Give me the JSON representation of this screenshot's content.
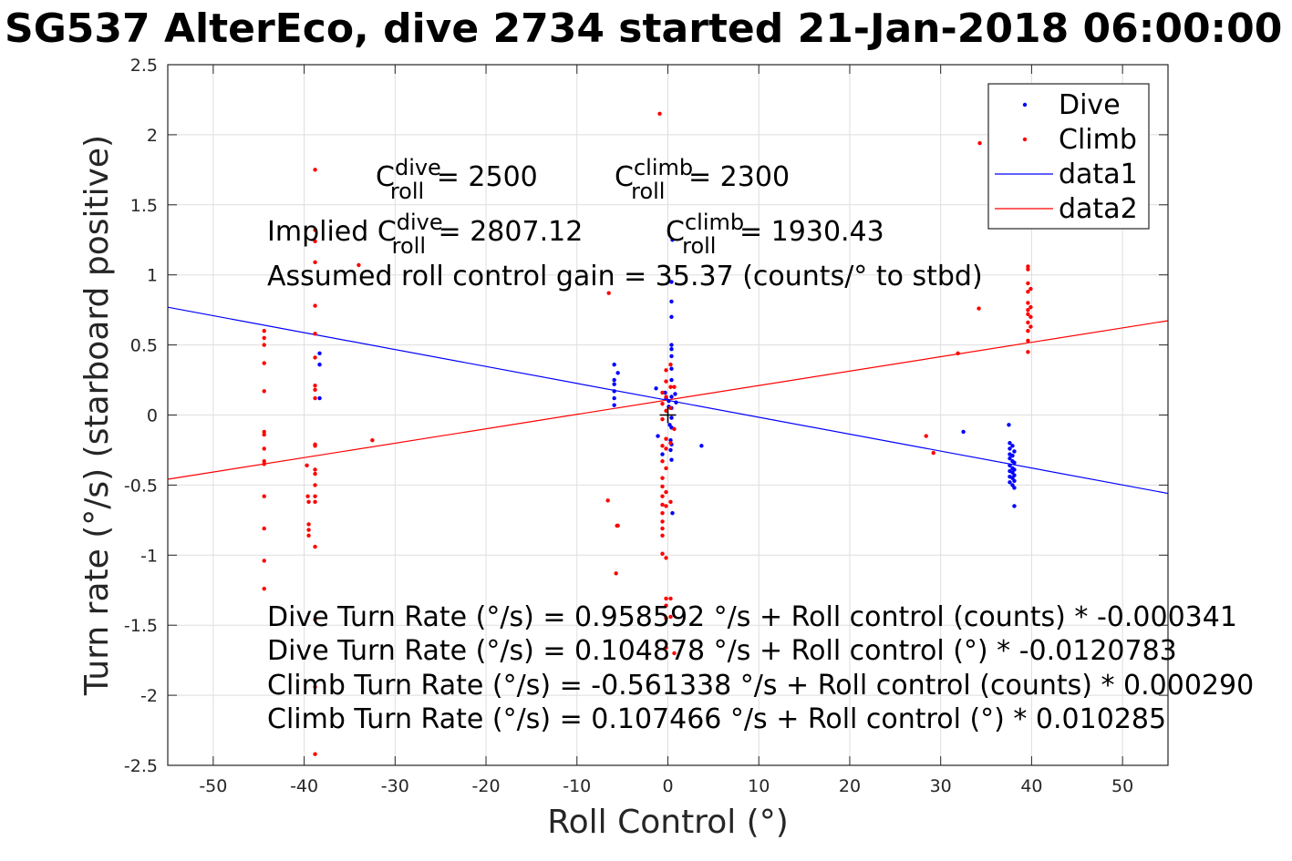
{
  "title": "SG537 AlterEco, dive 2734 started 21-Jan-2018 06:00:00",
  "annotations": {
    "c_dive_main": "C",
    "c_dive_sup": "dive",
    "c_dive_sub": "roll",
    "c_dive_value": " = 2500",
    "c_climb_main": "C",
    "c_climb_sup": "climb",
    "c_climb_sub": "roll",
    "c_climb_value": " = 2300",
    "implied_prefix": "Implied C",
    "implied_dive_sup": "dive",
    "implied_dive_sub": "roll",
    "implied_dive_value": " = 2807.12",
    "implied_climb_main": "C",
    "implied_climb_sup": "climb",
    "implied_climb_sub": "roll",
    "implied_climb_value": " = 1930.43",
    "gain": "Assumed roll control gain = 35.37 (counts/° to stbd)",
    "fit_lines": [
      "Dive Turn Rate (°/s) = 0.958592 °/s + Roll control (counts) * -0.000341",
      "Dive Turn Rate (°/s) = 0.104878 °/s + Roll control (°) * -0.0120783",
      "Climb Turn Rate (°/s) = -0.561338 °/s + Roll control (counts) * 0.000290",
      "Climb Turn Rate (°/s) = 0.107466 °/s + Roll control (°) * 0.010285"
    ]
  },
  "legend": {
    "placement": "top-right",
    "entries": [
      {
        "label": "Dive",
        "kind": "marker",
        "color": "#0000ff"
      },
      {
        "label": "Climb",
        "kind": "marker",
        "color": "#ff0000"
      },
      {
        "label": "data1",
        "kind": "line",
        "color": "#0000ff"
      },
      {
        "label": "data2",
        "kind": "line",
        "color": "#ff0000"
      }
    ]
  },
  "chart_data": {
    "type": "scatter",
    "title": "SG537 AlterEco, dive 2734 started 21-Jan-2018 06:00:00",
    "xlabel": "Roll Control (°)",
    "ylabel": "Turn rate (°/s) (starboard positive)",
    "xlim": [
      -55,
      55
    ],
    "ylim": [
      -2.5,
      2.5
    ],
    "xticks": [
      -50,
      -40,
      -30,
      -20,
      -10,
      0,
      10,
      20,
      30,
      40,
      50
    ],
    "yticks": [
      -2.5,
      -2,
      -1.5,
      -1,
      -0.5,
      0,
      0.5,
      1,
      1.5,
      2,
      2.5
    ],
    "grid": true,
    "series": [
      {
        "name": "Dive",
        "kind": "scatter",
        "color": "#0000ff",
        "points": [
          [
            -38.3,
            0.44
          ],
          [
            -38.3,
            0.36
          ],
          [
            -38.3,
            0.12
          ],
          [
            -5.9,
            0.36
          ],
          [
            -5.9,
            0.25
          ],
          [
            -5.9,
            0.22
          ],
          [
            -5.9,
            0.17
          ],
          [
            -5.9,
            0.12
          ],
          [
            -5.9,
            0.07
          ],
          [
            -5.5,
            0.3
          ],
          [
            -1.3,
            0.19
          ],
          [
            -1.1,
            -0.15
          ],
          [
            -0.6,
            -0.28
          ],
          [
            -0.3,
            0.16
          ],
          [
            -0.2,
            0.12
          ],
          [
            0.1,
            0.1
          ],
          [
            0.1,
            0.06
          ],
          [
            0.2,
            -0.07
          ],
          [
            0.3,
            -0.18
          ],
          [
            0.3,
            -0.25
          ],
          [
            0.4,
            0.95
          ],
          [
            0.4,
            0.81
          ],
          [
            0.4,
            0.7
          ],
          [
            0.4,
            0.5
          ],
          [
            0.4,
            0.47
          ],
          [
            0.4,
            0.42
          ],
          [
            0.4,
            0.33
          ],
          [
            0.4,
            0.25
          ],
          [
            0.4,
            0.13
          ],
          [
            0.4,
            0.05
          ],
          [
            0.4,
            -0.02
          ],
          [
            0.4,
            -0.09
          ],
          [
            0.4,
            -0.21
          ],
          [
            0.4,
            -0.32
          ],
          [
            0.5,
            1.25
          ],
          [
            0.5,
            -0.7
          ],
          [
            0.8,
            0.15
          ],
          [
            0.9,
            0.09
          ],
          [
            3.7,
            -0.22
          ],
          [
            32.5,
            -0.12
          ],
          [
            37.5,
            -0.07
          ],
          [
            37.6,
            -0.2
          ],
          [
            37.6,
            -0.24
          ],
          [
            37.6,
            -0.28
          ],
          [
            37.6,
            -0.31
          ],
          [
            37.6,
            -0.36
          ],
          [
            37.6,
            -0.4
          ],
          [
            37.6,
            -0.44
          ],
          [
            37.6,
            -0.48
          ],
          [
            37.9,
            -0.22
          ],
          [
            37.9,
            -0.29
          ],
          [
            37.9,
            -0.33
          ],
          [
            37.9,
            -0.38
          ],
          [
            37.9,
            -0.41
          ],
          [
            37.9,
            -0.45
          ],
          [
            37.9,
            -0.5
          ],
          [
            38.1,
            -0.26
          ],
          [
            38.1,
            -0.34
          ],
          [
            38.1,
            -0.39
          ],
          [
            38.1,
            -0.43
          ],
          [
            38.1,
            -0.47
          ],
          [
            38.1,
            -0.52
          ],
          [
            38.1,
            -0.65
          ]
        ]
      },
      {
        "name": "Climb",
        "kind": "scatter",
        "color": "#ff0000",
        "points": [
          [
            -44.4,
            0.6
          ],
          [
            -44.4,
            0.55
          ],
          [
            -44.4,
            0.5
          ],
          [
            -44.4,
            0.37
          ],
          [
            -44.4,
            0.17
          ],
          [
            -44.4,
            -0.12
          ],
          [
            -44.4,
            -0.14
          ],
          [
            -44.4,
            -0.24
          ],
          [
            -44.4,
            -0.33
          ],
          [
            -44.4,
            -0.35
          ],
          [
            -44.4,
            -0.58
          ],
          [
            -44.4,
            -0.81
          ],
          [
            -44.4,
            -1.04
          ],
          [
            -44.4,
            -1.24
          ],
          [
            -39.7,
            -0.36
          ],
          [
            -39.6,
            -0.58
          ],
          [
            -39.5,
            -0.62
          ],
          [
            -39.5,
            -0.78
          ],
          [
            -39.5,
            -0.82
          ],
          [
            -39.5,
            -0.86
          ],
          [
            -38.8,
            1.75
          ],
          [
            -38.8,
            1.32
          ],
          [
            -38.8,
            1.24
          ],
          [
            -38.8,
            1.09
          ],
          [
            -38.8,
            0.78
          ],
          [
            -38.8,
            0.58
          ],
          [
            -38.8,
            0.41
          ],
          [
            -38.8,
            0.21
          ],
          [
            -38.8,
            0.18
          ],
          [
            -38.8,
            0.12
          ],
          [
            -38.8,
            -0.21
          ],
          [
            -38.8,
            -0.22
          ],
          [
            -38.8,
            -0.39
          ],
          [
            -38.8,
            -0.42
          ],
          [
            -38.8,
            -0.5
          ],
          [
            -38.8,
            -0.58
          ],
          [
            -38.8,
            -0.62
          ],
          [
            -38.8,
            -0.94
          ],
          [
            -38.8,
            -1.46
          ],
          [
            -38.8,
            -1.94
          ],
          [
            -38.8,
            -2.42
          ],
          [
            -34.0,
            1.07
          ],
          [
            -32.5,
            -0.18
          ],
          [
            -6.6,
            -0.61
          ],
          [
            -6.5,
            0.87
          ],
          [
            -5.6,
            -0.79
          ],
          [
            -5.5,
            -0.79
          ],
          [
            -5.7,
            -1.13
          ],
          [
            -0.9,
            2.15
          ],
          [
            -0.6,
            0.16
          ],
          [
            -0.6,
            0.08
          ],
          [
            -0.6,
            -0.03
          ],
          [
            -0.6,
            -0.22
          ],
          [
            -0.6,
            -0.33
          ],
          [
            -0.6,
            -0.45
          ],
          [
            -0.6,
            -0.51
          ],
          [
            -0.6,
            -0.58
          ],
          [
            -0.6,
            -0.64
          ],
          [
            -0.6,
            -0.7
          ],
          [
            -0.6,
            -0.76
          ],
          [
            -0.6,
            -0.81
          ],
          [
            -0.6,
            -0.86
          ],
          [
            -0.6,
            -0.99
          ],
          [
            -0.2,
            0.32
          ],
          [
            -0.2,
            0.24
          ],
          [
            -0.2,
            0.13
          ],
          [
            -0.2,
            0.03
          ],
          [
            -0.2,
            -0.17
          ],
          [
            -0.2,
            -0.24
          ],
          [
            -0.2,
            -0.38
          ],
          [
            -0.2,
            -0.55
          ],
          [
            -0.2,
            -0.65
          ],
          [
            -0.2,
            -1.02
          ],
          [
            -0.2,
            -1.31
          ],
          [
            -0.2,
            -1.36
          ],
          [
            -0.2,
            -1.45
          ],
          [
            -0.2,
            -1.66
          ],
          [
            0.3,
            0.36
          ],
          [
            0.3,
            0.2
          ],
          [
            0.3,
            0.05
          ],
          [
            0.3,
            -0.2
          ],
          [
            0.3,
            -0.62
          ],
          [
            0.3,
            -1.31
          ],
          [
            0.3,
            -1.44
          ],
          [
            0.7,
            0.2
          ],
          [
            0.7,
            -0.1
          ],
          [
            0.7,
            -1.7
          ],
          [
            28.4,
            -0.15
          ],
          [
            29.2,
            -0.27
          ],
          [
            31.9,
            0.44
          ],
          [
            34.3,
            1.94
          ],
          [
            34.2,
            0.76
          ],
          [
            39.6,
            1.06
          ],
          [
            39.6,
            1.04
          ],
          [
            39.6,
            0.94
          ],
          [
            39.6,
            0.88
          ],
          [
            39.6,
            0.8
          ],
          [
            39.6,
            0.75
          ],
          [
            39.6,
            0.72
          ],
          [
            39.6,
            0.66
          ],
          [
            39.6,
            0.6
          ],
          [
            39.6,
            0.53
          ],
          [
            39.6,
            0.45
          ],
          [
            39.9,
            0.9
          ],
          [
            39.9,
            0.77
          ],
          [
            39.9,
            0.7
          ],
          [
            39.9,
            0.63
          ]
        ]
      },
      {
        "name": "data1",
        "kind": "line",
        "color": "#0000ff",
        "intercept": 0.104878,
        "slope": -0.0120783
      },
      {
        "name": "data2",
        "kind": "line",
        "color": "#ff0000",
        "intercept": 0.107466,
        "slope": 0.010285
      }
    ],
    "origin_marker": {
      "x": 0,
      "y": 0,
      "symbol": "+",
      "color": "#000000"
    }
  }
}
